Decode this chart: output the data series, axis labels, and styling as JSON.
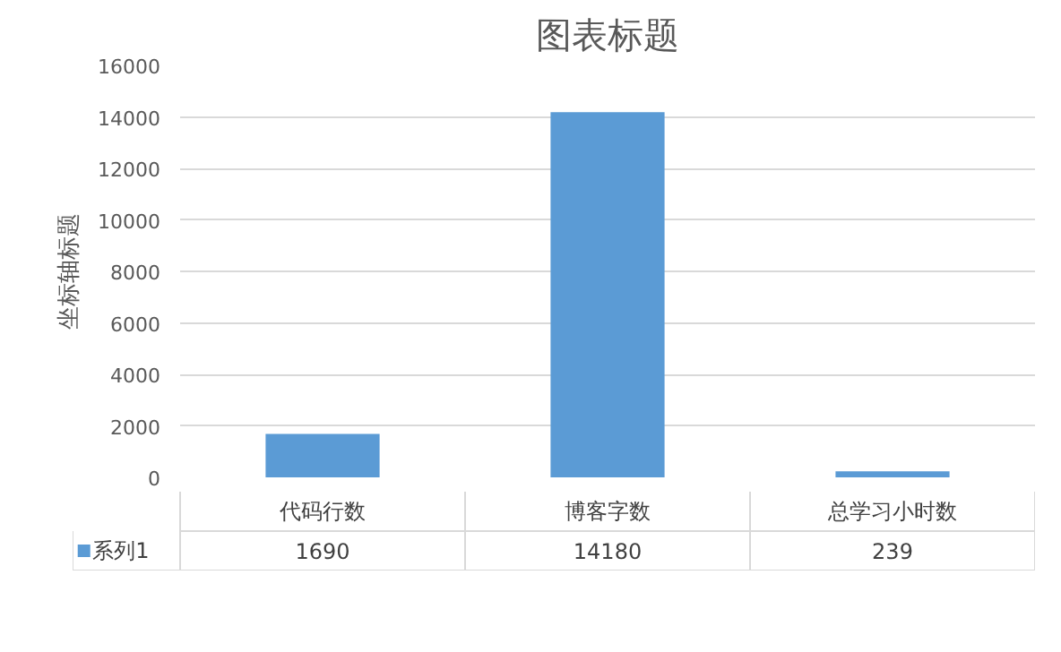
{
  "chart_data": {
    "type": "bar",
    "title": "图表标题",
    "ylabel": "坐标轴标题",
    "categories": [
      "代码行数",
      "博客字数",
      "总学习小时数"
    ],
    "series": [
      {
        "name": "系列1",
        "color": "#5b9bd5",
        "values": [
          1690,
          14180,
          239
        ]
      }
    ],
    "ylim": [
      0,
      16000
    ],
    "yticks": [
      0,
      2000,
      4000,
      6000,
      8000,
      10000,
      12000,
      14000,
      16000
    ],
    "grid": "y",
    "legend": "bottom",
    "data_labels": true
  }
}
